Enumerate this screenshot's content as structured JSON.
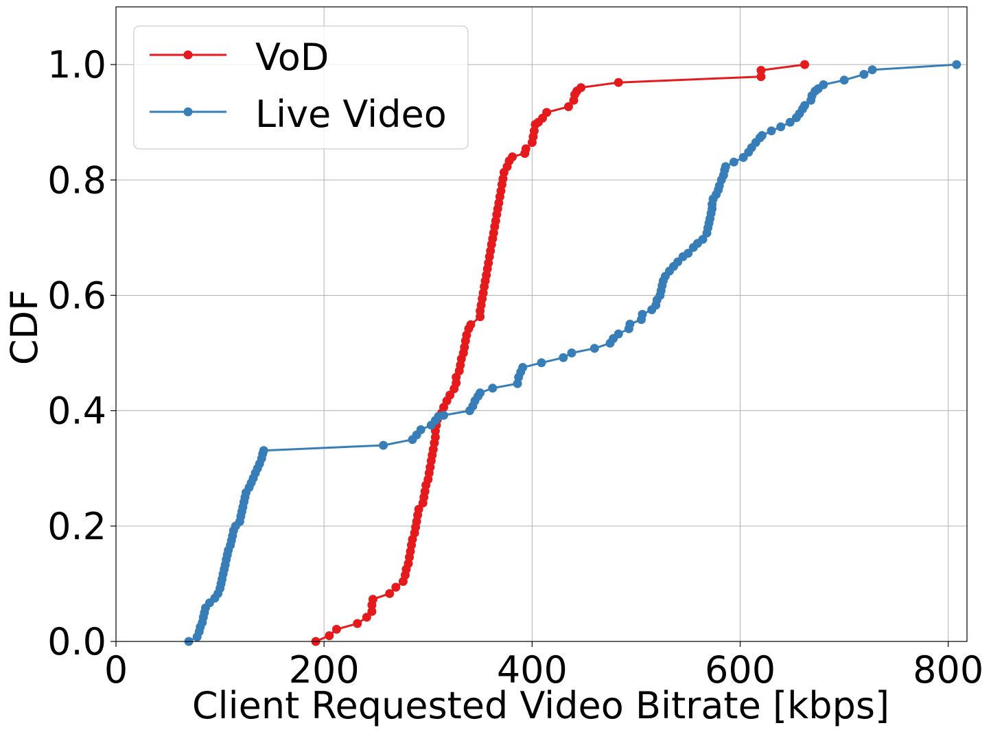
{
  "chart_data": {
    "type": "line",
    "xlabel": "Client Requested Video Bitrate [kbps]",
    "ylabel": "CDF",
    "xlim": [
      0,
      818
    ],
    "ylim": [
      0,
      1.1
    ],
    "xticks": [
      0,
      200,
      400,
      600,
      800
    ],
    "yticks": [
      0,
      0.2,
      0.4,
      0.6,
      0.8,
      1.0
    ],
    "xtick_labels": [
      "0",
      "200",
      "400",
      "600",
      "800"
    ],
    "ytick_labels": [
      "0.0",
      "0.2",
      "0.4",
      "0.6",
      "0.8",
      "1.0"
    ],
    "grid": true,
    "legend_position": "top-left",
    "series": [
      {
        "name": "VoD",
        "color": "#e41a1c",
        "points": [
          [
            192,
            0.0
          ],
          [
            205,
            0.01
          ],
          [
            212,
            0.021
          ],
          [
            232,
            0.031
          ],
          [
            241,
            0.042
          ],
          [
            246,
            0.052
          ],
          [
            246,
            0.063
          ],
          [
            247,
            0.073
          ],
          [
            263,
            0.083
          ],
          [
            269,
            0.094
          ],
          [
            276,
            0.104
          ],
          [
            278,
            0.115
          ],
          [
            279,
            0.125
          ],
          [
            281,
            0.135
          ],
          [
            282,
            0.146
          ],
          [
            283,
            0.156
          ],
          [
            284,
            0.167
          ],
          [
            285,
            0.177
          ],
          [
            287,
            0.188
          ],
          [
            288,
            0.198
          ],
          [
            289,
            0.208
          ],
          [
            290,
            0.219
          ],
          [
            291,
            0.229
          ],
          [
            295,
            0.24
          ],
          [
            296,
            0.25
          ],
          [
            297,
            0.26
          ],
          [
            298,
            0.271
          ],
          [
            300,
            0.281
          ],
          [
            301,
            0.292
          ],
          [
            302,
            0.302
          ],
          [
            303,
            0.313
          ],
          [
            304,
            0.323
          ],
          [
            305,
            0.333
          ],
          [
            306,
            0.344
          ],
          [
            307,
            0.354
          ],
          [
            307,
            0.365
          ],
          [
            308,
            0.375
          ],
          [
            309,
            0.385
          ],
          [
            313,
            0.396
          ],
          [
            315,
            0.406
          ],
          [
            318,
            0.417
          ],
          [
            321,
            0.427
          ],
          [
            325,
            0.438
          ],
          [
            327,
            0.448
          ],
          [
            327,
            0.458
          ],
          [
            330,
            0.469
          ],
          [
            331,
            0.479
          ],
          [
            332,
            0.49
          ],
          [
            334,
            0.5
          ],
          [
            335,
            0.51
          ],
          [
            336,
            0.521
          ],
          [
            337,
            0.531
          ],
          [
            339,
            0.542
          ],
          [
            341,
            0.549
          ],
          [
            350,
            0.563
          ],
          [
            350,
            0.573
          ],
          [
            351,
            0.583
          ],
          [
            352,
            0.594
          ],
          [
            353,
            0.604
          ],
          [
            354,
            0.615
          ],
          [
            355,
            0.625
          ],
          [
            356,
            0.635
          ],
          [
            357,
            0.646
          ],
          [
            358,
            0.656
          ],
          [
            359,
            0.667
          ],
          [
            360,
            0.677
          ],
          [
            361,
            0.688
          ],
          [
            362,
            0.698
          ],
          [
            363,
            0.708
          ],
          [
            364,
            0.719
          ],
          [
            365,
            0.729
          ],
          [
            366,
            0.74
          ],
          [
            367,
            0.75
          ],
          [
            368,
            0.76
          ],
          [
            369,
            0.771
          ],
          [
            370,
            0.781
          ],
          [
            371,
            0.792
          ],
          [
            372,
            0.802
          ],
          [
            373,
            0.813
          ],
          [
            376,
            0.823
          ],
          [
            378,
            0.833
          ],
          [
            381,
            0.84
          ],
          [
            393,
            0.846
          ],
          [
            394,
            0.854
          ],
          [
            400,
            0.865
          ],
          [
            401,
            0.875
          ],
          [
            402,
            0.885
          ],
          [
            403,
            0.896
          ],
          [
            406,
            0.9
          ],
          [
            410,
            0.907
          ],
          [
            414,
            0.917
          ],
          [
            435,
            0.927
          ],
          [
            440,
            0.938
          ],
          [
            441,
            0.948
          ],
          [
            443,
            0.954
          ],
          [
            447,
            0.96
          ],
          [
            483,
            0.969
          ],
          [
            620,
            0.979
          ],
          [
            620,
            0.99
          ],
          [
            662,
            1.0
          ]
        ]
      },
      {
        "name": "Live Video",
        "color": "#377eb8",
        "points": [
          [
            70,
            0.0
          ],
          [
            78,
            0.008
          ],
          [
            80,
            0.017
          ],
          [
            81,
            0.025
          ],
          [
            83,
            0.033
          ],
          [
            84,
            0.042
          ],
          [
            85,
            0.05
          ],
          [
            86,
            0.058
          ],
          [
            90,
            0.067
          ],
          [
            95,
            0.075
          ],
          [
            98,
            0.083
          ],
          [
            100,
            0.092
          ],
          [
            101,
            0.1
          ],
          [
            102,
            0.108
          ],
          [
            103,
            0.117
          ],
          [
            104,
            0.125
          ],
          [
            105,
            0.133
          ],
          [
            106,
            0.142
          ],
          [
            107,
            0.15
          ],
          [
            108,
            0.158
          ],
          [
            110,
            0.167
          ],
          [
            111,
            0.175
          ],
          [
            112,
            0.183
          ],
          [
            113,
            0.192
          ],
          [
            115,
            0.2
          ],
          [
            119,
            0.208
          ],
          [
            120,
            0.217
          ],
          [
            121,
            0.225
          ],
          [
            122,
            0.233
          ],
          [
            123,
            0.242
          ],
          [
            124,
            0.25
          ],
          [
            125,
            0.258
          ],
          [
            128,
            0.267
          ],
          [
            130,
            0.275
          ],
          [
            132,
            0.283
          ],
          [
            134,
            0.292
          ],
          [
            136,
            0.3
          ],
          [
            138,
            0.308
          ],
          [
            140,
            0.317
          ],
          [
            141,
            0.325
          ],
          [
            142,
            0.331
          ],
          [
            257,
            0.34
          ],
          [
            285,
            0.35
          ],
          [
            289,
            0.358
          ],
          [
            293,
            0.367
          ],
          [
            303,
            0.375
          ],
          [
            307,
            0.383
          ],
          [
            310,
            0.39
          ],
          [
            315,
            0.392
          ],
          [
            340,
            0.4
          ],
          [
            343,
            0.408
          ],
          [
            345,
            0.417
          ],
          [
            348,
            0.425
          ],
          [
            350,
            0.431
          ],
          [
            362,
            0.439
          ],
          [
            386,
            0.447
          ],
          [
            387,
            0.458
          ],
          [
            389,
            0.467
          ],
          [
            391,
            0.475
          ],
          [
            409,
            0.483
          ],
          [
            430,
            0.492
          ],
          [
            438,
            0.5
          ],
          [
            460,
            0.508
          ],
          [
            475,
            0.517
          ],
          [
            478,
            0.525
          ],
          [
            483,
            0.533
          ],
          [
            493,
            0.542
          ],
          [
            494,
            0.55
          ],
          [
            505,
            0.558
          ],
          [
            506,
            0.567
          ],
          [
            515,
            0.575
          ],
          [
            519,
            0.583
          ],
          [
            520,
            0.592
          ],
          [
            523,
            0.6
          ],
          [
            524,
            0.608
          ],
          [
            525,
            0.617
          ],
          [
            526,
            0.625
          ],
          [
            528,
            0.633
          ],
          [
            532,
            0.642
          ],
          [
            536,
            0.65
          ],
          [
            540,
            0.658
          ],
          [
            545,
            0.667
          ],
          [
            550,
            0.673
          ],
          [
            555,
            0.683
          ],
          [
            559,
            0.69
          ],
          [
            564,
            0.697
          ],
          [
            568,
            0.708
          ],
          [
            569,
            0.717
          ],
          [
            570,
            0.725
          ],
          [
            571,
            0.733
          ],
          [
            572,
            0.742
          ],
          [
            573,
            0.75
          ],
          [
            573,
            0.758
          ],
          [
            574,
            0.767
          ],
          [
            577,
            0.775
          ],
          [
            579,
            0.783
          ],
          [
            580,
            0.79
          ],
          [
            582,
            0.8
          ],
          [
            584,
            0.808
          ],
          [
            585,
            0.817
          ],
          [
            586,
            0.823
          ],
          [
            594,
            0.831
          ],
          [
            603,
            0.839
          ],
          [
            608,
            0.848
          ],
          [
            611,
            0.856
          ],
          [
            615,
            0.865
          ],
          [
            619,
            0.873
          ],
          [
            621,
            0.877
          ],
          [
            630,
            0.885
          ],
          [
            639,
            0.892
          ],
          [
            648,
            0.9
          ],
          [
            654,
            0.908
          ],
          [
            657,
            0.915
          ],
          [
            660,
            0.923
          ],
          [
            662,
            0.929
          ],
          [
            668,
            0.938
          ],
          [
            669,
            0.946
          ],
          [
            672,
            0.954
          ],
          [
            675,
            0.958
          ],
          [
            680,
            0.965
          ],
          [
            700,
            0.973
          ],
          [
            719,
            0.983
          ],
          [
            727,
            0.991
          ],
          [
            808,
            1.0
          ]
        ]
      }
    ]
  }
}
